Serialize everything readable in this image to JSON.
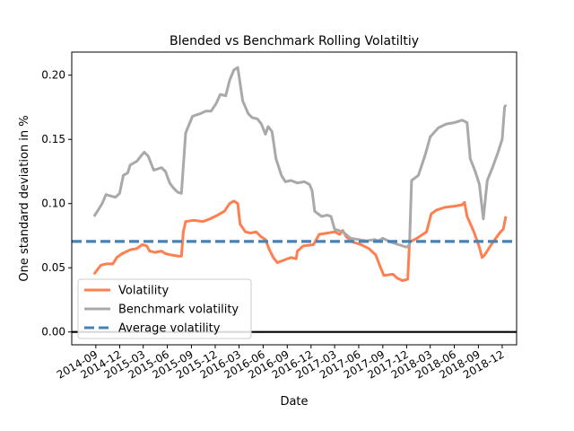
{
  "chart_data": {
    "type": "line",
    "title": "Blended vs Benchmark Rolling Volatiltiy",
    "xlabel": "Date",
    "ylabel": "One standard deviation in %",
    "xlim": [
      "2014-06-01",
      "2019-01-25"
    ],
    "ylim": [
      -0.01,
      0.218
    ],
    "yticks": [
      {
        "value": 0.0,
        "label": "0.00"
      },
      {
        "value": 0.05,
        "label": "0.05"
      },
      {
        "value": 0.1,
        "label": "0.10"
      },
      {
        "value": 0.15,
        "label": "0.15"
      },
      {
        "value": 0.2,
        "label": "0.20"
      }
    ],
    "xticks": [
      {
        "date": "2014-09-01",
        "label": "2014-09"
      },
      {
        "date": "2014-12-01",
        "label": "2014-12"
      },
      {
        "date": "2015-03-01",
        "label": "2015-03"
      },
      {
        "date": "2015-06-01",
        "label": "2015-06"
      },
      {
        "date": "2015-09-01",
        "label": "2015-09"
      },
      {
        "date": "2015-12-01",
        "label": "2015-12"
      },
      {
        "date": "2016-03-01",
        "label": "2016-03"
      },
      {
        "date": "2016-06-01",
        "label": "2016-06"
      },
      {
        "date": "2016-09-01",
        "label": "2016-09"
      },
      {
        "date": "2016-12-01",
        "label": "2016-12"
      },
      {
        "date": "2017-03-01",
        "label": "2017-03"
      },
      {
        "date": "2017-06-01",
        "label": "2017-06"
      },
      {
        "date": "2017-09-01",
        "label": "2017-09"
      },
      {
        "date": "2017-12-01",
        "label": "2017-12"
      },
      {
        "date": "2018-03-01",
        "label": "2018-03"
      },
      {
        "date": "2018-06-01",
        "label": "2018-06"
      },
      {
        "date": "2018-09-01",
        "label": "2018-09"
      },
      {
        "date": "2018-12-01",
        "label": "2018-12"
      }
    ],
    "grid": false,
    "legend_position": "lower-left",
    "series": [
      {
        "name": "Volatility",
        "color": "#ff7f50",
        "style": "solid",
        "points": [
          [
            "2014-08-25",
            0.045
          ],
          [
            "2014-09-05",
            0.048
          ],
          [
            "2014-09-20",
            0.052
          ],
          [
            "2014-10-10",
            0.053
          ],
          [
            "2014-11-05",
            0.053
          ],
          [
            "2014-11-20",
            0.058
          ],
          [
            "2014-12-10",
            0.061
          ],
          [
            "2015-01-10",
            0.064
          ],
          [
            "2015-02-05",
            0.065
          ],
          [
            "2015-02-25",
            0.068
          ],
          [
            "2015-03-15",
            0.067
          ],
          [
            "2015-03-25",
            0.063
          ],
          [
            "2015-04-15",
            0.062
          ],
          [
            "2015-05-10",
            0.063
          ],
          [
            "2015-05-25",
            0.061
          ],
          [
            "2015-06-15",
            0.06
          ],
          [
            "2015-07-15",
            0.059
          ],
          [
            "2015-07-25",
            0.059
          ],
          [
            "2015-08-01",
            0.078
          ],
          [
            "2015-08-10",
            0.086
          ],
          [
            "2015-09-10",
            0.087
          ],
          [
            "2015-10-15",
            0.086
          ],
          [
            "2015-11-10",
            0.088
          ],
          [
            "2015-12-10",
            0.091
          ],
          [
            "2016-01-05",
            0.094
          ],
          [
            "2016-01-25",
            0.1
          ],
          [
            "2016-02-10",
            0.102
          ],
          [
            "2016-02-25",
            0.1
          ],
          [
            "2016-03-05",
            0.084
          ],
          [
            "2016-03-25",
            0.078
          ],
          [
            "2016-04-15",
            0.077
          ],
          [
            "2016-05-05",
            0.078
          ],
          [
            "2016-05-25",
            0.074
          ],
          [
            "2016-06-10",
            0.072
          ],
          [
            "2016-06-25",
            0.064
          ],
          [
            "2016-07-10",
            0.058
          ],
          [
            "2016-07-25",
            0.054
          ],
          [
            "2016-08-20",
            0.056
          ],
          [
            "2016-09-15",
            0.058
          ],
          [
            "2016-10-05",
            0.057
          ],
          [
            "2016-10-10",
            0.063
          ],
          [
            "2016-11-01",
            0.067
          ],
          [
            "2016-12-10",
            0.068
          ],
          [
            "2017-01-01",
            0.076
          ],
          [
            "2017-02-01",
            0.077
          ],
          [
            "2017-03-01",
            0.078
          ],
          [
            "2017-03-20",
            0.076
          ],
          [
            "2017-04-01",
            0.079
          ],
          [
            "2017-04-15",
            0.074
          ],
          [
            "2017-05-10",
            0.07
          ],
          [
            "2017-06-10",
            0.068
          ],
          [
            "2017-07-10",
            0.065
          ],
          [
            "2017-08-05",
            0.06
          ],
          [
            "2017-08-20",
            0.052
          ],
          [
            "2017-09-05",
            0.044
          ],
          [
            "2017-10-10",
            0.045
          ],
          [
            "2017-10-25",
            0.042
          ],
          [
            "2017-11-15",
            0.04
          ],
          [
            "2017-12-05",
            0.041
          ],
          [
            "2017-12-12",
            0.07
          ],
          [
            "2018-01-10",
            0.073
          ],
          [
            "2018-02-15",
            0.078
          ],
          [
            "2018-03-05",
            0.092
          ],
          [
            "2018-03-25",
            0.095
          ],
          [
            "2018-04-25",
            0.097
          ],
          [
            "2018-06-01",
            0.098
          ],
          [
            "2018-07-01",
            0.099
          ],
          [
            "2018-07-10",
            0.101
          ],
          [
            "2018-07-20",
            0.09
          ],
          [
            "2018-08-15",
            0.078
          ],
          [
            "2018-09-05",
            0.066
          ],
          [
            "2018-09-15",
            0.058
          ],
          [
            "2018-09-25",
            0.06
          ],
          [
            "2018-10-20",
            0.068
          ],
          [
            "2018-11-10",
            0.074
          ],
          [
            "2018-11-25",
            0.078
          ],
          [
            "2018-12-05",
            0.08
          ],
          [
            "2018-12-15",
            0.09
          ]
        ]
      },
      {
        "name": "Benchmark volatility",
        "color": "#a9a9a9",
        "style": "solid",
        "points": [
          [
            "2014-08-25",
            0.09
          ],
          [
            "2014-09-10",
            0.095
          ],
          [
            "2014-09-25",
            0.1
          ],
          [
            "2014-10-10",
            0.107
          ],
          [
            "2014-10-25",
            0.106
          ],
          [
            "2014-11-15",
            0.105
          ],
          [
            "2014-12-01",
            0.108
          ],
          [
            "2014-12-15",
            0.122
          ],
          [
            "2015-01-01",
            0.124
          ],
          [
            "2015-01-10",
            0.13
          ],
          [
            "2015-02-05",
            0.133
          ],
          [
            "2015-02-20",
            0.137
          ],
          [
            "2015-03-05",
            0.14
          ],
          [
            "2015-03-20",
            0.137
          ],
          [
            "2015-04-10",
            0.126
          ],
          [
            "2015-05-10",
            0.128
          ],
          [
            "2015-05-25",
            0.125
          ],
          [
            "2015-06-10",
            0.116
          ],
          [
            "2015-06-25",
            0.112
          ],
          [
            "2015-07-10",
            0.109
          ],
          [
            "2015-07-25",
            0.108
          ],
          [
            "2015-08-10",
            0.155
          ],
          [
            "2015-09-05",
            0.168
          ],
          [
            "2015-10-05",
            0.17
          ],
          [
            "2015-10-25",
            0.172
          ],
          [
            "2015-11-15",
            0.172
          ],
          [
            "2015-12-05",
            0.178
          ],
          [
            "2015-12-20",
            0.185
          ],
          [
            "2016-01-10",
            0.184
          ],
          [
            "2016-01-25",
            0.196
          ],
          [
            "2016-02-10",
            0.204
          ],
          [
            "2016-02-25",
            0.206
          ],
          [
            "2016-03-15",
            0.18
          ],
          [
            "2016-04-05",
            0.17
          ],
          [
            "2016-04-20",
            0.167
          ],
          [
            "2016-05-10",
            0.166
          ],
          [
            "2016-05-25",
            0.162
          ],
          [
            "2016-06-10",
            0.154
          ],
          [
            "2016-06-20",
            0.16
          ],
          [
            "2016-07-05",
            0.156
          ],
          [
            "2016-07-20",
            0.135
          ],
          [
            "2016-08-10",
            0.122
          ],
          [
            "2016-08-25",
            0.117
          ],
          [
            "2016-09-15",
            0.118
          ],
          [
            "2016-10-10",
            0.116
          ],
          [
            "2016-11-05",
            0.117
          ],
          [
            "2016-11-25",
            0.115
          ],
          [
            "2016-12-05",
            0.11
          ],
          [
            "2016-12-15",
            0.094
          ],
          [
            "2017-01-10",
            0.09
          ],
          [
            "2017-02-01",
            0.091
          ],
          [
            "2017-02-15",
            0.09
          ],
          [
            "2017-03-01",
            0.08
          ],
          [
            "2017-04-01",
            0.078
          ],
          [
            "2017-05-01",
            0.073
          ],
          [
            "2017-06-01",
            0.072
          ],
          [
            "2017-07-01",
            0.071
          ],
          [
            "2017-08-01",
            0.072
          ],
          [
            "2017-08-15",
            0.071
          ],
          [
            "2017-09-01",
            0.073
          ],
          [
            "2017-10-01",
            0.07
          ],
          [
            "2017-11-01",
            0.068
          ],
          [
            "2017-12-01",
            0.066
          ],
          [
            "2017-12-12",
            0.068
          ],
          [
            "2017-12-20",
            0.118
          ],
          [
            "2018-01-15",
            0.122
          ],
          [
            "2018-02-10",
            0.138
          ],
          [
            "2018-03-01",
            0.152
          ],
          [
            "2018-04-01",
            0.159
          ],
          [
            "2018-05-01",
            0.162
          ],
          [
            "2018-06-01",
            0.163
          ],
          [
            "2018-07-01",
            0.165
          ],
          [
            "2018-07-20",
            0.163
          ],
          [
            "2018-08-01",
            0.135
          ],
          [
            "2018-08-20",
            0.125
          ],
          [
            "2018-09-05",
            0.115
          ],
          [
            "2018-09-20",
            0.088
          ],
          [
            "2018-10-05",
            0.118
          ],
          [
            "2018-10-25",
            0.128
          ],
          [
            "2018-11-15",
            0.14
          ],
          [
            "2018-12-01",
            0.15
          ],
          [
            "2018-12-10",
            0.175
          ],
          [
            "2018-12-15",
            0.177
          ]
        ]
      },
      {
        "name": "Average volatility",
        "color": "#4682b4",
        "style": "dashed",
        "points": [
          [
            "2014-06-01",
            0.0705
          ],
          [
            "2019-01-25",
            0.0705
          ]
        ]
      }
    ],
    "reference_lines": [
      {
        "type": "horizontal",
        "value": 0.0,
        "color": "#000000"
      }
    ]
  }
}
